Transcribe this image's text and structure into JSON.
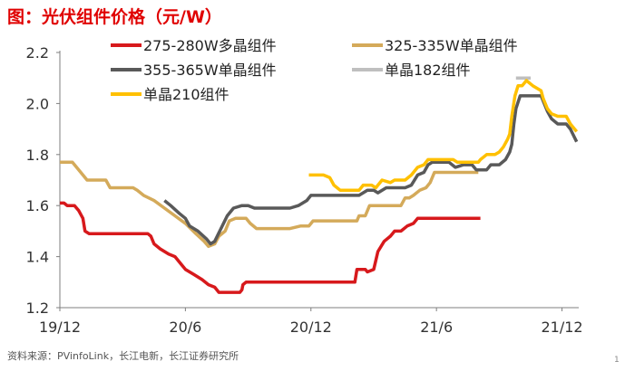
{
  "title": "图：光伏组件价格（元/W）",
  "source": "资料来源：PVinfoLink，长江电新，长江证券研究所",
  "page_mark": "1",
  "chart_data": {
    "type": "line",
    "title": "光伏组件价格（元/W）",
    "xlabel": "",
    "ylabel": "",
    "ylim": [
      1.2,
      2.2
    ],
    "xlim": [
      0,
      24.8
    ],
    "x_ticks": [
      {
        "x": 0,
        "label": "19/12"
      },
      {
        "x": 6,
        "label": "20/6"
      },
      {
        "x": 12,
        "label": "20/12"
      },
      {
        "x": 18,
        "label": "21/6"
      },
      {
        "x": 24,
        "label": "21/12"
      }
    ],
    "y_ticks": [
      {
        "y": 1.2,
        "label": "1.2"
      },
      {
        "y": 1.4,
        "label": "1.4"
      },
      {
        "y": 1.6,
        "label": "1.6"
      },
      {
        "y": 1.8,
        "label": "1.8"
      },
      {
        "y": 2.0,
        "label": "2.0"
      },
      {
        "y": 2.2,
        "label": "2.2"
      }
    ],
    "series": [
      {
        "name": "275-280W多晶组件",
        "color": "#d7191c",
        "width": 3.5,
        "points": [
          [
            0,
            1.61
          ],
          [
            0.2,
            1.61
          ],
          [
            0.35,
            1.6
          ],
          [
            0.7,
            1.6
          ],
          [
            0.9,
            1.58
          ],
          [
            1.1,
            1.55
          ],
          [
            1.2,
            1.5
          ],
          [
            1.4,
            1.49
          ],
          [
            2,
            1.49
          ],
          [
            3,
            1.49
          ],
          [
            4,
            1.49
          ],
          [
            4.2,
            1.49
          ],
          [
            4.35,
            1.48
          ],
          [
            4.5,
            1.45
          ],
          [
            4.8,
            1.43
          ],
          [
            5.2,
            1.41
          ],
          [
            5.5,
            1.4
          ],
          [
            5.8,
            1.37
          ],
          [
            6,
            1.35
          ],
          [
            6.4,
            1.33
          ],
          [
            6.8,
            1.31
          ],
          [
            7.1,
            1.29
          ],
          [
            7.4,
            1.28
          ],
          [
            7.6,
            1.26
          ],
          [
            8,
            1.26
          ],
          [
            8.6,
            1.26
          ],
          [
            8.7,
            1.27
          ],
          [
            8.75,
            1.29
          ],
          [
            8.9,
            1.3
          ],
          [
            10,
            1.3
          ],
          [
            12,
            1.3
          ],
          [
            13.5,
            1.3
          ],
          [
            14.1,
            1.3
          ],
          [
            14.2,
            1.35
          ],
          [
            14.6,
            1.35
          ],
          [
            14.7,
            1.34
          ],
          [
            15,
            1.35
          ],
          [
            15.2,
            1.42
          ],
          [
            15.5,
            1.46
          ],
          [
            15.8,
            1.48
          ],
          [
            16,
            1.5
          ],
          [
            16.3,
            1.5
          ],
          [
            16.6,
            1.52
          ],
          [
            16.9,
            1.53
          ],
          [
            17.1,
            1.55
          ],
          [
            18,
            1.55
          ],
          [
            19,
            1.55
          ],
          [
            20,
            1.55
          ],
          [
            20.1,
            1.55
          ]
        ]
      },
      {
        "name": "325-335W单晶组件",
        "color": "#d4aa5a",
        "width": 3.5,
        "points": [
          [
            0,
            1.77
          ],
          [
            0.6,
            1.77
          ],
          [
            0.9,
            1.74
          ],
          [
            1.3,
            1.7
          ],
          [
            2.2,
            1.7
          ],
          [
            2.4,
            1.67
          ],
          [
            3,
            1.67
          ],
          [
            3.5,
            1.67
          ],
          [
            3.7,
            1.66
          ],
          [
            4,
            1.64
          ],
          [
            4.5,
            1.62
          ],
          [
            5,
            1.59
          ],
          [
            5.5,
            1.56
          ],
          [
            6,
            1.53
          ],
          [
            6.5,
            1.49
          ],
          [
            6.9,
            1.46
          ],
          [
            7.1,
            1.44
          ],
          [
            7.4,
            1.45
          ],
          [
            7.6,
            1.48
          ],
          [
            7.9,
            1.5
          ],
          [
            8.1,
            1.54
          ],
          [
            8.4,
            1.55
          ],
          [
            8.9,
            1.55
          ],
          [
            9.1,
            1.53
          ],
          [
            9.4,
            1.51
          ],
          [
            10,
            1.51
          ],
          [
            11,
            1.51
          ],
          [
            11.5,
            1.52
          ],
          [
            11.9,
            1.52
          ],
          [
            12.1,
            1.54
          ],
          [
            13,
            1.54
          ],
          [
            14,
            1.54
          ],
          [
            14.2,
            1.54
          ],
          [
            14.3,
            1.56
          ],
          [
            14.6,
            1.56
          ],
          [
            14.8,
            1.6
          ],
          [
            15.6,
            1.6
          ],
          [
            15.9,
            1.6
          ],
          [
            16.3,
            1.6
          ],
          [
            16.5,
            1.63
          ],
          [
            16.7,
            1.63
          ],
          [
            16.9,
            1.64
          ],
          [
            17.2,
            1.66
          ],
          [
            17.5,
            1.67
          ],
          [
            17.7,
            1.69
          ],
          [
            17.9,
            1.73
          ],
          [
            18.4,
            1.73
          ],
          [
            19,
            1.73
          ],
          [
            19.5,
            1.73
          ],
          [
            20,
            1.73
          ]
        ]
      },
      {
        "name": "355-365W单晶组件",
        "color": "#595959",
        "width": 3.5,
        "points": [
          [
            5,
            1.62
          ],
          [
            5.3,
            1.6
          ],
          [
            5.7,
            1.57
          ],
          [
            6,
            1.55
          ],
          [
            6.2,
            1.52
          ],
          [
            6.6,
            1.5
          ],
          [
            7,
            1.47
          ],
          [
            7.2,
            1.45
          ],
          [
            7.4,
            1.46
          ],
          [
            7.7,
            1.51
          ],
          [
            8,
            1.56
          ],
          [
            8.3,
            1.59
          ],
          [
            8.7,
            1.6
          ],
          [
            9,
            1.6
          ],
          [
            9.3,
            1.59
          ],
          [
            10,
            1.59
          ],
          [
            11,
            1.59
          ],
          [
            11.4,
            1.6
          ],
          [
            11.8,
            1.62
          ],
          [
            12,
            1.64
          ],
          [
            13,
            1.64
          ],
          [
            14,
            1.64
          ],
          [
            14.3,
            1.64
          ],
          [
            14.7,
            1.66
          ],
          [
            15,
            1.66
          ],
          [
            15.2,
            1.65
          ],
          [
            15.6,
            1.67
          ],
          [
            16,
            1.67
          ],
          [
            16.5,
            1.67
          ],
          [
            16.8,
            1.68
          ],
          [
            17.1,
            1.72
          ],
          [
            17.4,
            1.73
          ],
          [
            17.6,
            1.76
          ],
          [
            17.8,
            1.77
          ],
          [
            18.6,
            1.77
          ],
          [
            18.9,
            1.75
          ],
          [
            19.3,
            1.76
          ],
          [
            19.7,
            1.76
          ],
          [
            19.9,
            1.74
          ],
          [
            20,
            1.74
          ],
          [
            20.4,
            1.74
          ],
          [
            20.6,
            1.76
          ],
          [
            21,
            1.76
          ],
          [
            21.3,
            1.78
          ],
          [
            21.5,
            1.81
          ],
          [
            21.6,
            1.84
          ],
          [
            21.7,
            1.92
          ],
          [
            21.8,
            1.98
          ],
          [
            22,
            2.03
          ],
          [
            22.5,
            2.03
          ],
          [
            23,
            2.03
          ],
          [
            23.1,
            2.01
          ],
          [
            23.3,
            1.97
          ],
          [
            23.5,
            1.94
          ],
          [
            23.8,
            1.92
          ],
          [
            24.2,
            1.92
          ],
          [
            24.4,
            1.9
          ],
          [
            24.7,
            1.85
          ]
        ]
      },
      {
        "name": "单晶182组件",
        "color": "#bfbfbf",
        "width": 3.5,
        "points": [
          [
            21.8,
            2.1
          ],
          [
            22.2,
            2.1
          ],
          [
            22.5,
            2.1
          ]
        ]
      },
      {
        "name": "单晶210组件",
        "color": "#ffc000",
        "width": 3.5,
        "points": [
          [
            11.9,
            1.72
          ],
          [
            12.6,
            1.72
          ],
          [
            12.9,
            1.71
          ],
          [
            13.1,
            1.68
          ],
          [
            13.4,
            1.66
          ],
          [
            14,
            1.66
          ],
          [
            14.3,
            1.66
          ],
          [
            14.5,
            1.68
          ],
          [
            14.9,
            1.68
          ],
          [
            15.1,
            1.67
          ],
          [
            15.4,
            1.7
          ],
          [
            15.8,
            1.69
          ],
          [
            16,
            1.7
          ],
          [
            16.5,
            1.7
          ],
          [
            16.8,
            1.72
          ],
          [
            17.1,
            1.75
          ],
          [
            17.4,
            1.76
          ],
          [
            17.6,
            1.78
          ],
          [
            18.5,
            1.78
          ],
          [
            18.8,
            1.78
          ],
          [
            19,
            1.77
          ],
          [
            19.5,
            1.77
          ],
          [
            20,
            1.77
          ],
          [
            20.1,
            1.78
          ],
          [
            20.4,
            1.8
          ],
          [
            20.8,
            1.8
          ],
          [
            21,
            1.81
          ],
          [
            21.2,
            1.83
          ],
          [
            21.4,
            1.86
          ],
          [
            21.5,
            1.88
          ],
          [
            21.6,
            1.95
          ],
          [
            21.75,
            2.03
          ],
          [
            21.9,
            2.07
          ],
          [
            22.1,
            2.07
          ],
          [
            22.3,
            2.09
          ],
          [
            22.6,
            2.07
          ],
          [
            22.8,
            2.06
          ],
          [
            23,
            2.05
          ],
          [
            23.1,
            2.02
          ],
          [
            23.3,
            1.98
          ],
          [
            23.5,
            1.96
          ],
          [
            23.8,
            1.95
          ],
          [
            24.2,
            1.95
          ],
          [
            24.4,
            1.92
          ],
          [
            24.7,
            1.89
          ]
        ]
      }
    ],
    "legend": {
      "placement": "top",
      "entries": [
        "275-280W多晶组件",
        "325-335W单晶组件",
        "355-365W单晶组件",
        "单晶182组件",
        "单晶210组件"
      ]
    },
    "grid": false
  }
}
